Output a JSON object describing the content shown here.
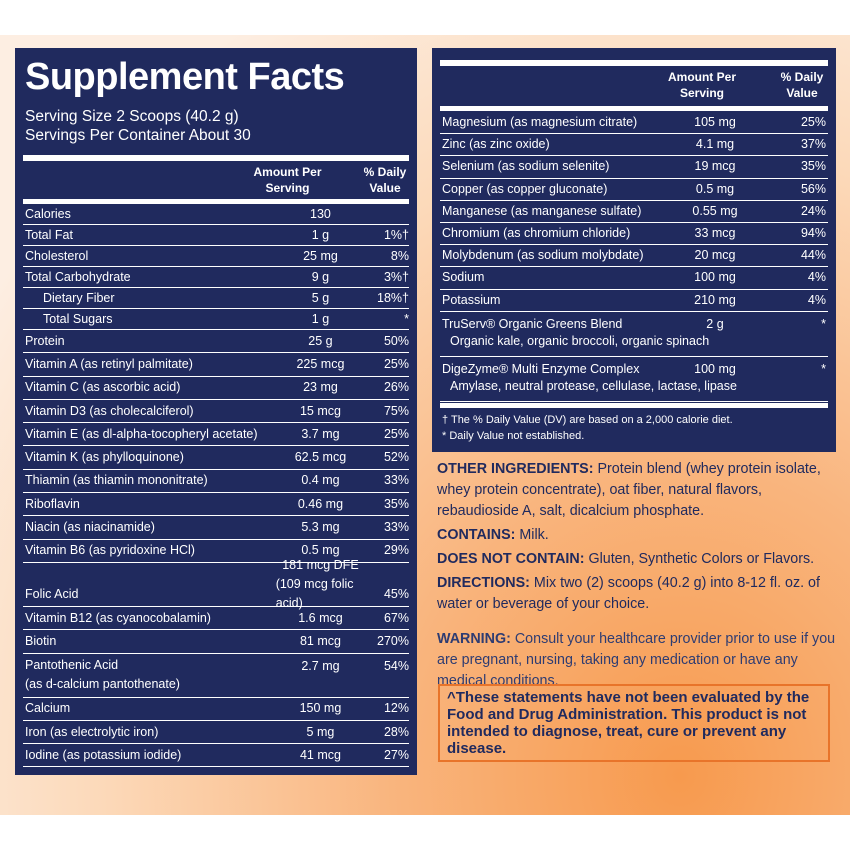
{
  "left_panel": {
    "title": "Supplement Facts",
    "serving_size": "Serving Size 2 Scoops (40.2 g)",
    "servings_per_container": "Servings Per Container About 30",
    "header": {
      "amount": "Amount Per Serving",
      "daily_value": "% Daily Value"
    },
    "rows": [
      {
        "name": "Calories",
        "amount": "130"
      },
      {
        "name": "Total Fat",
        "amount": "1 g",
        "dv": "1%†"
      },
      {
        "name": "Cholesterol",
        "amount": "25 mg",
        "dv": "8%"
      },
      {
        "name": "Total Carbohydrate",
        "amount": "9 g",
        "dv": "3%†"
      },
      {
        "name": "Dietary Fiber",
        "amount": "5 g",
        "dv": "18%†",
        "indent": true
      },
      {
        "name": "Total Sugars",
        "amount": "1 g",
        "dv": "*",
        "indent": true
      },
      {
        "name": "Protein",
        "amount": "25 g",
        "dv": "50%"
      },
      {
        "name": "Vitamin A (as retinyl palmitate)",
        "amount": "225 mcg",
        "dv": "25%"
      },
      {
        "name": "Vitamin C (as ascorbic acid)",
        "amount": "23 mg",
        "dv": "26%"
      },
      {
        "name": "Vitamin D3 (as cholecalciferol)",
        "amount": "15 mcg",
        "dv": "75%"
      },
      {
        "name": "Vitamin E (as dl-alpha-tocopheryl acetate)",
        "amount": "3.7 mg",
        "dv": "25%"
      },
      {
        "name": "Vitamin K (as phylloquinone)",
        "amount": "62.5 mcg",
        "dv": "52%"
      },
      {
        "name": "Thiamin (as thiamin mononitrate)",
        "amount": "0.4 mg",
        "dv": "33%"
      },
      {
        "name": "Riboflavin",
        "amount": "0.46 mg",
        "dv": "35%"
      },
      {
        "name": "Niacin (as niacinamide)",
        "amount": "5.3 mg",
        "dv": "33%"
      },
      {
        "name": "Vitamin B6 (as pyridoxine HCl)",
        "amount": "0.5 mg",
        "dv": "29%"
      },
      {
        "name": "Folic Acid",
        "amount": [
          "181 mcg DFE",
          "(109 mcg folic acid)"
        ],
        "dv": "45%"
      },
      {
        "name": "Vitamin B12 (as cyanocobalamin)",
        "amount": "1.6 mcg",
        "dv": "67%"
      },
      {
        "name": "Biotin",
        "amount": "81 mcg",
        "dv": "270%"
      },
      {
        "name": [
          "Pantothenic Acid",
          "(as d-calcium pantothenate)"
        ],
        "amount": "2.7 mg",
        "dv": "54%"
      },
      {
        "name": "Calcium",
        "amount": "150 mg",
        "dv": "12%"
      },
      {
        "name": "Iron (as electrolytic iron)",
        "amount": "5 mg",
        "dv": "28%"
      },
      {
        "name": "Iodine (as potassium iodide)",
        "amount": "41 mcg",
        "dv": "27%"
      }
    ]
  },
  "right_panel": {
    "header": {
      "amount": "Amount Per Serving",
      "daily_value": "% Daily Value"
    },
    "rows": [
      {
        "name": "Magnesium (as magnesium citrate)",
        "amount": "105 mg",
        "dv": "25%"
      },
      {
        "name": "Zinc (as zinc oxide)",
        "amount": "4.1 mg",
        "dv": "37%"
      },
      {
        "name": "Selenium (as sodium selenite)",
        "amount": "19 mcg",
        "dv": "35%"
      },
      {
        "name": "Copper (as copper gluconate)",
        "amount": "0.5 mg",
        "dv": "56%"
      },
      {
        "name": "Manganese (as manganese sulfate)",
        "amount": "0.55 mg",
        "dv": "24%"
      },
      {
        "name": "Chromium (as chromium chloride)",
        "amount": "33 mcg",
        "dv": "94%"
      },
      {
        "name": "Molybdenum (as sodium molybdate)",
        "amount": "20 mcg",
        "dv": "44%"
      },
      {
        "name": "Sodium",
        "amount": "100 mg",
        "dv": "4%"
      },
      {
        "name": "Potassium",
        "amount": "210 mg",
        "dv": "4%"
      },
      {
        "name": "TruServ® Organic Greens Blend",
        "amount": "2 g",
        "dv": "*",
        "detail": "Organic kale, organic broccoli, organic spinach"
      },
      {
        "name": "DigeZyme® Multi Enzyme Complex",
        "amount": "100 mg",
        "dv": "*",
        "detail": "Amylase, neutral protease, cellulase, lactase, lipase"
      }
    ],
    "footnotes": [
      "† The % Daily Value (DV) are based on a 2,000 calorie diet.",
      "* Daily Value not established."
    ]
  },
  "notes": [
    {
      "label": "OTHER INGREDIENTS:",
      "text": "Protein blend (whey protein isolate, whey protein concentrate), oat fiber, natural flavors, rebaudioside A, salt, dicalcium phosphate."
    },
    {
      "label": "CONTAINS:",
      "text": "Milk."
    },
    {
      "label": "DOES NOT CONTAIN:",
      "text": "Gluten, Synthetic Colors or Flavors."
    },
    {
      "label": "DIRECTIONS:",
      "text": "Mix two (2) scoops (40.2 g) into 8-12 fl. oz. of water or beverage of your choice."
    },
    {
      "label": "WARNING:",
      "text": "Consult your healthcare provider prior to use if you are pregnant, nursing, taking any medication or have any medical conditions."
    }
  ],
  "disclaimer": "^These statements have not been evaluated by the Food and Drug Administration. This product is not intended to diagnose, treat, cure or prevent any disease."
}
